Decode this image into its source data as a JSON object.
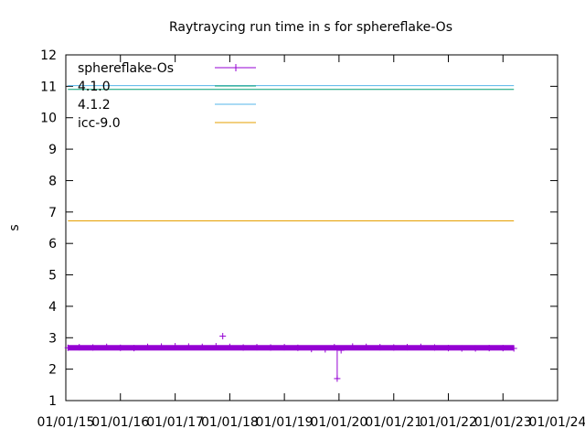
{
  "chart_data": {
    "type": "line",
    "title": "Raytraycing run time in s for sphereflake-Os",
    "xlabel": "",
    "ylabel": "s",
    "xlim": [
      "2015-01-01",
      "2024-01-01"
    ],
    "ylim": [
      1,
      12
    ],
    "x_tick_labels": [
      "01/01/15",
      "01/01/16",
      "01/01/17",
      "01/01/18",
      "01/01/19",
      "01/01/20",
      "01/01/21",
      "01/01/22",
      "01/01/23",
      "01/01/24"
    ],
    "y_tick_labels": [
      "1",
      "2",
      "3",
      "4",
      "5",
      "6",
      "7",
      "8",
      "9",
      "10",
      "11",
      "12"
    ],
    "grid": false,
    "legend_position": "top-left",
    "series": [
      {
        "name": "sphereflake-Os",
        "color": "#9400d3",
        "style": "points",
        "base_level": 2.68,
        "x_start": "2015-01-15",
        "x_end": "2023-03-15",
        "points": [
          {
            "x": "2015-01-15",
            "y": 2.68
          },
          {
            "x": "2015-04-01",
            "y": 2.7
          },
          {
            "x": "2015-07-01",
            "y": 2.69
          },
          {
            "x": "2015-10-01",
            "y": 2.71
          },
          {
            "x": "2016-01-01",
            "y": 2.68
          },
          {
            "x": "2016-04-01",
            "y": 2.67
          },
          {
            "x": "2016-07-01",
            "y": 2.71
          },
          {
            "x": "2016-10-01",
            "y": 2.72
          },
          {
            "x": "2017-01-01",
            "y": 2.73
          },
          {
            "x": "2017-04-01",
            "y": 2.72
          },
          {
            "x": "2017-07-01",
            "y": 2.71
          },
          {
            "x": "2017-10-01",
            "y": 2.73
          },
          {
            "x": "2017-11-15",
            "y": 3.05
          },
          {
            "x": "2018-01-01",
            "y": 2.71
          },
          {
            "x": "2018-04-01",
            "y": 2.69
          },
          {
            "x": "2018-07-01",
            "y": 2.7
          },
          {
            "x": "2018-10-01",
            "y": 2.69
          },
          {
            "x": "2019-01-01",
            "y": 2.7
          },
          {
            "x": "2019-04-01",
            "y": 2.68
          },
          {
            "x": "2019-07-01",
            "y": 2.64
          },
          {
            "x": "2019-10-01",
            "y": 2.63
          },
          {
            "x": "2019-12-01",
            "y": 2.7
          },
          {
            "x": "2019-12-20",
            "y": 1.7
          },
          {
            "x": "2020-01-15",
            "y": 2.6
          },
          {
            "x": "2020-04-01",
            "y": 2.72
          },
          {
            "x": "2020-07-01",
            "y": 2.71
          },
          {
            "x": "2020-10-01",
            "y": 2.7
          },
          {
            "x": "2021-01-01",
            "y": 2.69
          },
          {
            "x": "2021-04-01",
            "y": 2.7
          },
          {
            "x": "2021-07-01",
            "y": 2.71
          },
          {
            "x": "2021-10-01",
            "y": 2.69
          },
          {
            "x": "2022-01-01",
            "y": 2.67
          },
          {
            "x": "2022-04-01",
            "y": 2.66
          },
          {
            "x": "2022-07-01",
            "y": 2.66
          },
          {
            "x": "2022-10-01",
            "y": 2.67
          },
          {
            "x": "2023-01-01",
            "y": 2.67
          },
          {
            "x": "2023-03-15",
            "y": 2.66
          }
        ]
      },
      {
        "name": "4.1.0",
        "color": "#009e73",
        "style": "line",
        "x_start": "2015-01-15",
        "x_end": "2023-03-15",
        "y": 10.9
      },
      {
        "name": "4.1.2",
        "color": "#56b4e9",
        "style": "line",
        "x_start": "2015-01-15",
        "x_end": "2023-03-15",
        "y": 11.02
      },
      {
        "name": "icc-9.0",
        "color": "#e69f00",
        "style": "line",
        "x_start": "2015-01-15",
        "x_end": "2023-03-15",
        "y": 6.72
      }
    ]
  }
}
